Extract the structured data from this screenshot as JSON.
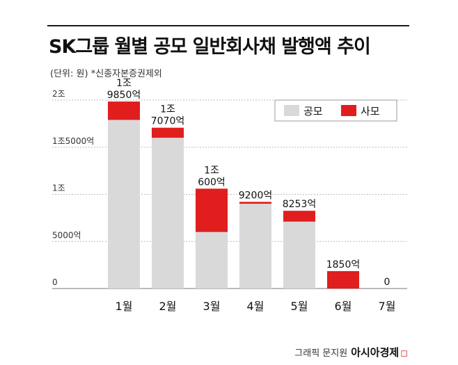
{
  "header": {
    "title": "SK그룹 월별 공모 일반회사채 발행액 추이",
    "unit_note": "(단위: 원)",
    "footnote": "*신종자본증권제외"
  },
  "credit": {
    "text": "그래픽 문지원",
    "brand": "아시아경제",
    "mark": "ㅁ"
  },
  "chart_data": {
    "type": "bar",
    "stacked": true,
    "categories": [
      "1월",
      "2월",
      "3월",
      "4월",
      "5월",
      "6월",
      "7월"
    ],
    "series": [
      {
        "name": "공모",
        "color": "#d9d9d9",
        "values": [
          17900,
          16000,
          6000,
          9000,
          7100,
          0,
          0
        ]
      },
      {
        "name": "사모",
        "color": "#e01e1e",
        "values": [
          1950,
          1070,
          4600,
          200,
          1153,
          1850,
          0
        ]
      }
    ],
    "totals": [
      19850,
      17070,
      10600,
      9200,
      8253,
      1850,
      0
    ],
    "total_labels": [
      [
        "1조",
        "9850억"
      ],
      [
        "1조",
        "7070억"
      ],
      [
        "1조",
        "600억"
      ],
      [
        "9200억"
      ],
      [
        "8253억"
      ],
      [
        "1850억"
      ],
      [
        "0"
      ]
    ],
    "y_ticks": [
      {
        "value": 0,
        "label": "0"
      },
      {
        "value": 5000,
        "label": "5000억"
      },
      {
        "value": 10000,
        "label": "1조"
      },
      {
        "value": 15000,
        "label": "1조5000억"
      },
      {
        "value": 20000,
        "label": "2조"
      }
    ],
    "ylim": [
      0,
      20000
    ],
    "grid": true,
    "legend_position": "top-right"
  }
}
